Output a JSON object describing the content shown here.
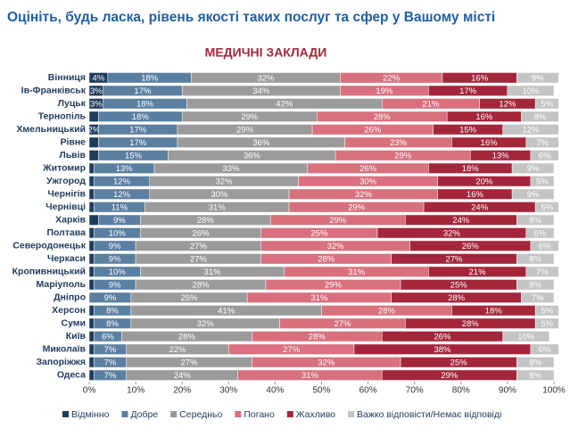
{
  "chart_data": {
    "type": "stacked-bar-horizontal",
    "title": "Оцініть, будь ласка, рівень якості таких послуг та сфер у Вашому місті",
    "subtitle": "МЕДИЧНІ ЗАКЛАДИ",
    "categories": [
      "Вінниця",
      "Ів-Франківськ",
      "Луцьк",
      "Тернопіль",
      "Хмельницький",
      "Рівне",
      "Львів",
      "Житомир",
      "Ужгород",
      "Чернігів",
      "Чернівці",
      "Харків",
      "Полтава",
      "Северодонецьк",
      "Черкаси",
      "Кропивницький",
      "Маріуполь",
      "Дніпро",
      "Херсон",
      "Суми",
      "Київ",
      "Миколаїв",
      "Запоріжжя",
      "Одеса"
    ],
    "series": [
      {
        "name": "Відмінно",
        "color": "#1f3b5c",
        "values": [
          4,
          3,
          3,
          2,
          2,
          2,
          2,
          1,
          1,
          1,
          1,
          2,
          1,
          1,
          1,
          1,
          1,
          0,
          1,
          1,
          1,
          1,
          1,
          1
        ],
        "value_labels": [
          "4%",
          "3%",
          "3%",
          null,
          "2%",
          null,
          null,
          null,
          null,
          null,
          null,
          null,
          null,
          null,
          null,
          null,
          null,
          null,
          null,
          null,
          null,
          null,
          null,
          null
        ]
      },
      {
        "name": "Добре",
        "color": "#5b7fa1",
        "values": [
          18,
          17,
          18,
          18,
          17,
          17,
          15,
          13,
          12,
          12,
          11,
          9,
          10,
          9,
          9,
          10,
          9,
          9,
          8,
          8,
          6,
          7,
          7,
          7
        ],
        "value_labels": [
          "18%",
          "17%",
          "18%",
          "18%",
          "17%",
          "17%",
          "15%",
          "13%",
          "12%",
          "12%",
          "11%",
          "9%",
          "10%",
          "9%",
          "9%",
          "10%",
          "9%",
          "9%",
          "8%",
          "8%",
          "6%",
          "7%",
          "7%",
          "7%"
        ]
      },
      {
        "name": "Середньо",
        "color": "#9b9b9b",
        "values": [
          32,
          34,
          42,
          29,
          29,
          36,
          36,
          33,
          32,
          30,
          31,
          28,
          26,
          27,
          27,
          31,
          28,
          25,
          41,
          32,
          28,
          22,
          27,
          24
        ],
        "value_labels": [
          "32%",
          "34%",
          "42%",
          "29%",
          "29%",
          "36%",
          "36%",
          "33%",
          "32%",
          "30%",
          "31%",
          "28%",
          "26%",
          "27%",
          "27%",
          "31%",
          "28%",
          "25%",
          "41%",
          "32%",
          "28%",
          "22%",
          "27%",
          "24%"
        ]
      },
      {
        "name": "Погано",
        "color": "#d8707e",
        "values": [
          22,
          19,
          21,
          28,
          26,
          23,
          29,
          26,
          30,
          32,
          29,
          29,
          25,
          32,
          28,
          31,
          29,
          31,
          28,
          27,
          28,
          27,
          32,
          31
        ],
        "value_labels": [
          "22%",
          "19%",
          "21%",
          "28%",
          "26%",
          "23%",
          "29%",
          "26%",
          "30%",
          "32%",
          "29%",
          "29%",
          "25%",
          "32%",
          "28%",
          "31%",
          "29%",
          "31%",
          "28%",
          "27%",
          "28%",
          "27%",
          "32%",
          "31%"
        ]
      },
      {
        "name": "Жахливо",
        "color": "#a4263b",
        "values": [
          16,
          17,
          12,
          16,
          15,
          16,
          13,
          18,
          20,
          16,
          24,
          24,
          32,
          26,
          27,
          21,
          25,
          28,
          18,
          28,
          26,
          38,
          25,
          29
        ],
        "value_labels": [
          "16%",
          "17%",
          "12%",
          "16%",
          "15%",
          "16%",
          "13%",
          "18%",
          "20%",
          "16%",
          "24%",
          "24%",
          "32%",
          "26%",
          "27%",
          "21%",
          "25%",
          "28%",
          "18%",
          "28%",
          "26%",
          "38%",
          "25%",
          "29%"
        ]
      },
      {
        "name": "Важко відповісти/Немає відповіді",
        "color": "#c4c4c4",
        "values": [
          9,
          10,
          5,
          8,
          12,
          7,
          6,
          9,
          5,
          9,
          5,
          8,
          6,
          6,
          8,
          7,
          8,
          7,
          5,
          5,
          10,
          6,
          8,
          8
        ],
        "value_labels": [
          "9%",
          "10%",
          "5%",
          "8%",
          "12%",
          "7%",
          "6%",
          "9%",
          "5%",
          "9%",
          "5%",
          "8%",
          "6%",
          "6%",
          "8%",
          "7%",
          "8%",
          "7%",
          "5%",
          "5%",
          "10%",
          "6%",
          "8%",
          "8%"
        ]
      }
    ],
    "xlim": [
      0,
      100
    ],
    "xticks": [
      {
        "value": 0,
        "label": "0%"
      },
      {
        "value": 10,
        "label": "10%"
      },
      {
        "value": 20,
        "label": "20%"
      },
      {
        "value": 30,
        "label": "30%"
      },
      {
        "value": 40,
        "label": "40%"
      },
      {
        "value": 50,
        "label": "50%"
      },
      {
        "value": 60,
        "label": "60%"
      },
      {
        "value": 70,
        "label": "70%"
      },
      {
        "value": 80,
        "label": "80%"
      },
      {
        "value": 90,
        "label": "90%"
      },
      {
        "value": 100,
        "label": "100%"
      }
    ],
    "legend": "bottom"
  }
}
